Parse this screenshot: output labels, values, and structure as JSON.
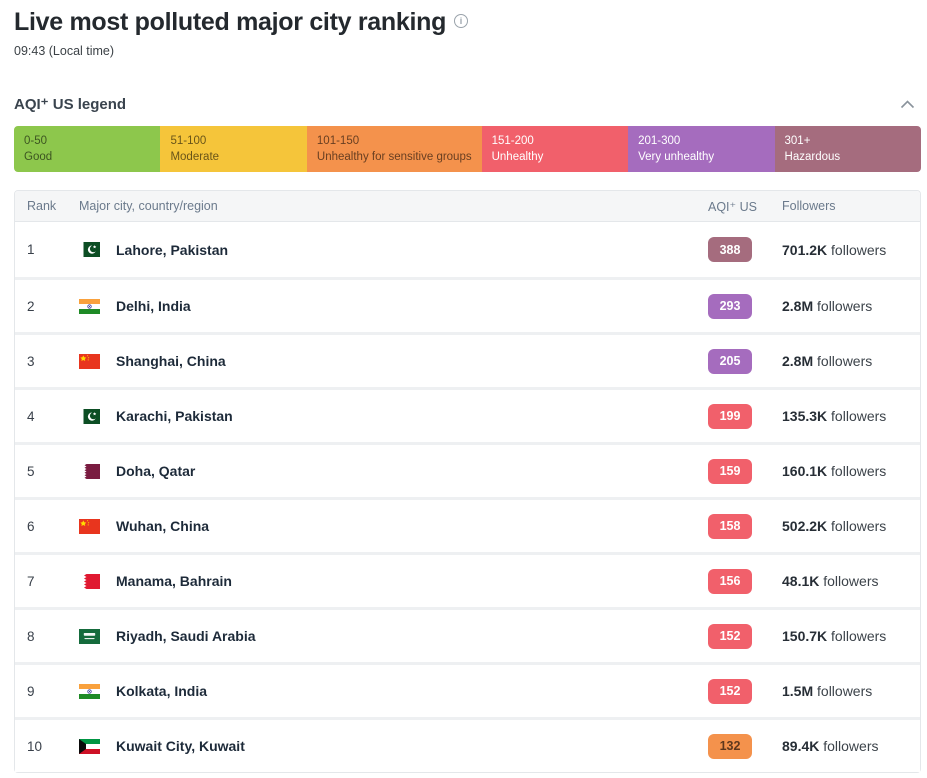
{
  "page": {
    "title": "Live most polluted major city ranking",
    "subtitle": "09:43 (Local time)"
  },
  "icons": {
    "info_glyph": "i"
  },
  "colors": {
    "good": "#8dc74c",
    "moderate": "#f5c53a",
    "usg": "#f4924c",
    "unhealthy": "#f1606b",
    "very_unhealthy": "#a56cbe",
    "hazardous": "#a56c7e"
  },
  "legend": {
    "heading": "AQI⁺ US legend",
    "items": [
      {
        "range": "0-50",
        "label": "Good",
        "level": "good",
        "dark_text": true
      },
      {
        "range": "51-100",
        "label": "Moderate",
        "level": "moderate",
        "dark_text": true
      },
      {
        "range": "101-150",
        "label": "Unhealthy for sensitive groups",
        "level": "usg",
        "dark_text": true
      },
      {
        "range": "151-200",
        "label": "Unhealthy",
        "level": "unhealthy",
        "dark_text": false
      },
      {
        "range": "201-300",
        "label": "Very unhealthy",
        "level": "very_unhealthy",
        "dark_text": false
      },
      {
        "range": "301+",
        "label": "Hazardous",
        "level": "hazardous",
        "dark_text": false
      }
    ]
  },
  "table": {
    "headers": {
      "rank": "Rank",
      "city": "Major city, country/region",
      "aqi": "AQI⁺ US",
      "followers": "Followers"
    },
    "rows": [
      {
        "rank": "1",
        "city": "Lahore, Pakistan",
        "flag": "pakistan",
        "aqi": "388",
        "level": "hazardous",
        "followers_count": "701.2K",
        "followers_word": "followers"
      },
      {
        "rank": "2",
        "city": "Delhi, India",
        "flag": "india",
        "aqi": "293",
        "level": "very_unhealthy",
        "followers_count": "2.8M",
        "followers_word": "followers"
      },
      {
        "rank": "3",
        "city": "Shanghai, China",
        "flag": "china",
        "aqi": "205",
        "level": "very_unhealthy",
        "followers_count": "2.8M",
        "followers_word": "followers"
      },
      {
        "rank": "4",
        "city": "Karachi, Pakistan",
        "flag": "pakistan",
        "aqi": "199",
        "level": "unhealthy",
        "followers_count": "135.3K",
        "followers_word": "followers"
      },
      {
        "rank": "5",
        "city": "Doha, Qatar",
        "flag": "qatar",
        "aqi": "159",
        "level": "unhealthy",
        "followers_count": "160.1K",
        "followers_word": "followers"
      },
      {
        "rank": "6",
        "city": "Wuhan, China",
        "flag": "china",
        "aqi": "158",
        "level": "unhealthy",
        "followers_count": "502.2K",
        "followers_word": "followers"
      },
      {
        "rank": "7",
        "city": "Manama, Bahrain",
        "flag": "bahrain",
        "aqi": "156",
        "level": "unhealthy",
        "followers_count": "48.1K",
        "followers_word": "followers"
      },
      {
        "rank": "8",
        "city": "Riyadh, Saudi Arabia",
        "flag": "saudi-arabia",
        "aqi": "152",
        "level": "unhealthy",
        "followers_count": "150.7K",
        "followers_word": "followers"
      },
      {
        "rank": "9",
        "city": "Kolkata, India",
        "flag": "india",
        "aqi": "152",
        "level": "unhealthy",
        "followers_count": "1.5M",
        "followers_word": "followers"
      },
      {
        "rank": "10",
        "city": "Kuwait City, Kuwait",
        "flag": "kuwait",
        "aqi": "132",
        "level": "usg",
        "followers_count": "89.4K",
        "followers_word": "followers"
      }
    ]
  }
}
